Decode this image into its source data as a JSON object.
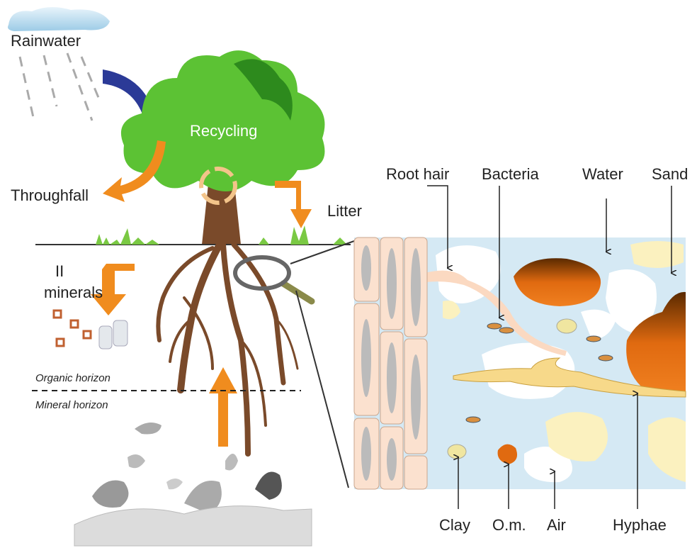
{
  "left_panel": {
    "rainwater": "Rainwater",
    "recycling": "Recycling",
    "throughfall": "Throughfall",
    "litter": "Litter",
    "minerals": [
      "II",
      "minerals"
    ],
    "organic_horizon": "Organic horizon",
    "mineral_horizon": "Mineral horizon"
  },
  "inset": {
    "top_labels": [
      "Root hair",
      "Bacteria",
      "Water",
      "Sand"
    ],
    "bottom_labels": [
      "Clay",
      "O.m.",
      "Air",
      "Hyphae"
    ]
  }
}
